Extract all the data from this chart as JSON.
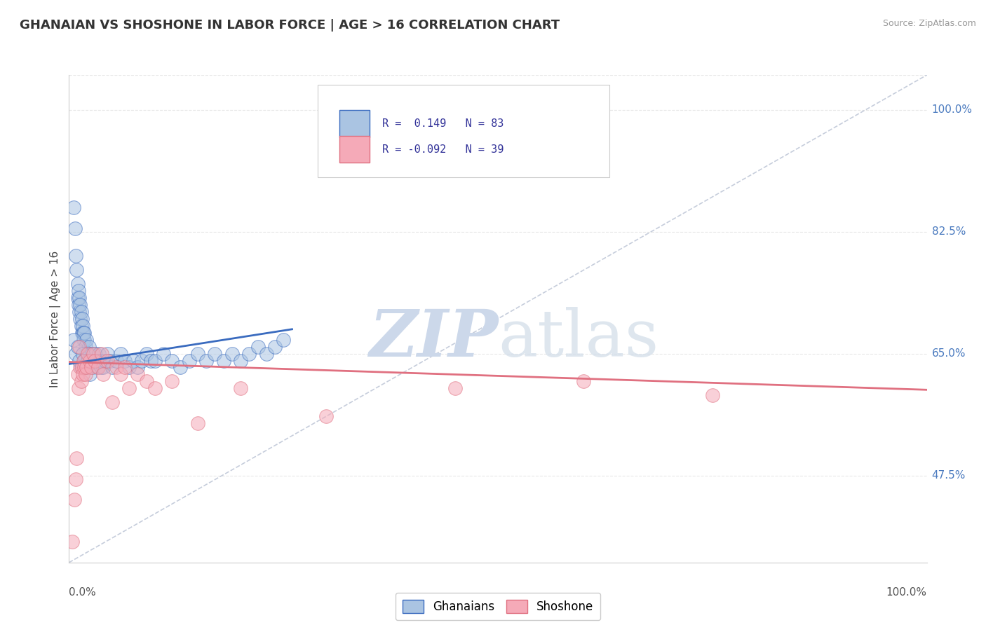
{
  "title": "GHANAIAN VS SHOSHONE IN LABOR FORCE | AGE > 16 CORRELATION CHART",
  "source_text": "Source: ZipAtlas.com",
  "ylabel": "In Labor Force | Age > 16",
  "xlim": [
    0.0,
    1.0
  ],
  "ylim": [
    0.35,
    1.05
  ],
  "xtick_left_label": "0.0%",
  "xtick_right_label": "100.0%",
  "ytick_positions": [
    0.475,
    0.65,
    0.825,
    1.0
  ],
  "yticklabels": [
    "47.5%",
    "65.0%",
    "82.5%",
    "100.0%"
  ],
  "legend_labels": [
    "Ghanaians",
    "Shoshone"
  ],
  "legend_R": [
    "0.149",
    "-0.092"
  ],
  "legend_N": [
    "83",
    "39"
  ],
  "scatter_blue_color": "#aac4e2",
  "scatter_pink_color": "#f5aab8",
  "line_blue_color": "#3a6bbf",
  "line_pink_color": "#e07080",
  "ref_line_color": "#c0c8d8",
  "watermark_color": "#ccd8ea",
  "background_color": "#ffffff",
  "grid_color": "#e8e8e8",
  "blue_scatter_x": [
    0.005,
    0.007,
    0.008,
    0.009,
    0.01,
    0.01,
    0.011,
    0.011,
    0.012,
    0.012,
    0.013,
    0.013,
    0.014,
    0.014,
    0.015,
    0.015,
    0.016,
    0.016,
    0.017,
    0.017,
    0.018,
    0.018,
    0.019,
    0.02,
    0.02,
    0.021,
    0.022,
    0.023,
    0.024,
    0.025,
    0.026,
    0.027,
    0.028,
    0.029,
    0.03,
    0.031,
    0.032,
    0.033,
    0.034,
    0.035,
    0.036,
    0.037,
    0.038,
    0.04,
    0.042,
    0.045,
    0.048,
    0.05,
    0.055,
    0.06,
    0.065,
    0.07,
    0.075,
    0.08,
    0.085,
    0.09,
    0.095,
    0.1,
    0.11,
    0.12,
    0.13,
    0.14,
    0.15,
    0.16,
    0.17,
    0.18,
    0.19,
    0.2,
    0.21,
    0.22,
    0.23,
    0.24,
    0.25,
    0.005,
    0.008,
    0.01,
    0.012,
    0.014,
    0.016,
    0.018,
    0.02,
    0.022,
    0.024
  ],
  "blue_scatter_y": [
    0.86,
    0.83,
    0.79,
    0.77,
    0.73,
    0.75,
    0.72,
    0.74,
    0.71,
    0.73,
    0.72,
    0.7,
    0.69,
    0.71,
    0.68,
    0.7,
    0.68,
    0.69,
    0.67,
    0.68,
    0.67,
    0.68,
    0.66,
    0.65,
    0.67,
    0.65,
    0.65,
    0.66,
    0.65,
    0.64,
    0.64,
    0.65,
    0.63,
    0.64,
    0.64,
    0.65,
    0.64,
    0.63,
    0.64,
    0.65,
    0.64,
    0.63,
    0.64,
    0.63,
    0.64,
    0.65,
    0.64,
    0.63,
    0.64,
    0.65,
    0.64,
    0.63,
    0.64,
    0.63,
    0.64,
    0.65,
    0.64,
    0.64,
    0.65,
    0.64,
    0.63,
    0.64,
    0.65,
    0.64,
    0.65,
    0.64,
    0.65,
    0.64,
    0.65,
    0.66,
    0.65,
    0.66,
    0.67,
    0.67,
    0.65,
    0.66,
    0.64,
    0.63,
    0.65,
    0.64,
    0.63,
    0.64,
    0.62
  ],
  "pink_scatter_x": [
    0.004,
    0.006,
    0.008,
    0.009,
    0.01,
    0.011,
    0.012,
    0.013,
    0.014,
    0.015,
    0.016,
    0.017,
    0.018,
    0.019,
    0.02,
    0.022,
    0.024,
    0.026,
    0.028,
    0.03,
    0.034,
    0.038,
    0.04,
    0.045,
    0.05,
    0.055,
    0.06,
    0.065,
    0.07,
    0.08,
    0.09,
    0.1,
    0.12,
    0.15,
    0.2,
    0.3,
    0.45,
    0.6,
    0.75
  ],
  "pink_scatter_y": [
    0.38,
    0.44,
    0.47,
    0.5,
    0.62,
    0.6,
    0.66,
    0.63,
    0.61,
    0.63,
    0.62,
    0.64,
    0.63,
    0.62,
    0.63,
    0.65,
    0.64,
    0.63,
    0.65,
    0.64,
    0.63,
    0.65,
    0.62,
    0.64,
    0.58,
    0.63,
    0.62,
    0.63,
    0.6,
    0.62,
    0.61,
    0.6,
    0.61,
    0.55,
    0.6,
    0.56,
    0.6,
    0.61,
    0.59
  ],
  "blue_trend_x": [
    0.0,
    0.26
  ],
  "blue_trend_y": [
    0.635,
    0.685
  ],
  "pink_trend_x": [
    0.0,
    1.0
  ],
  "pink_trend_y": [
    0.638,
    0.598
  ],
  "ref_line_x": [
    0.0,
    1.0
  ],
  "ref_line_y": [
    0.35,
    1.05
  ]
}
